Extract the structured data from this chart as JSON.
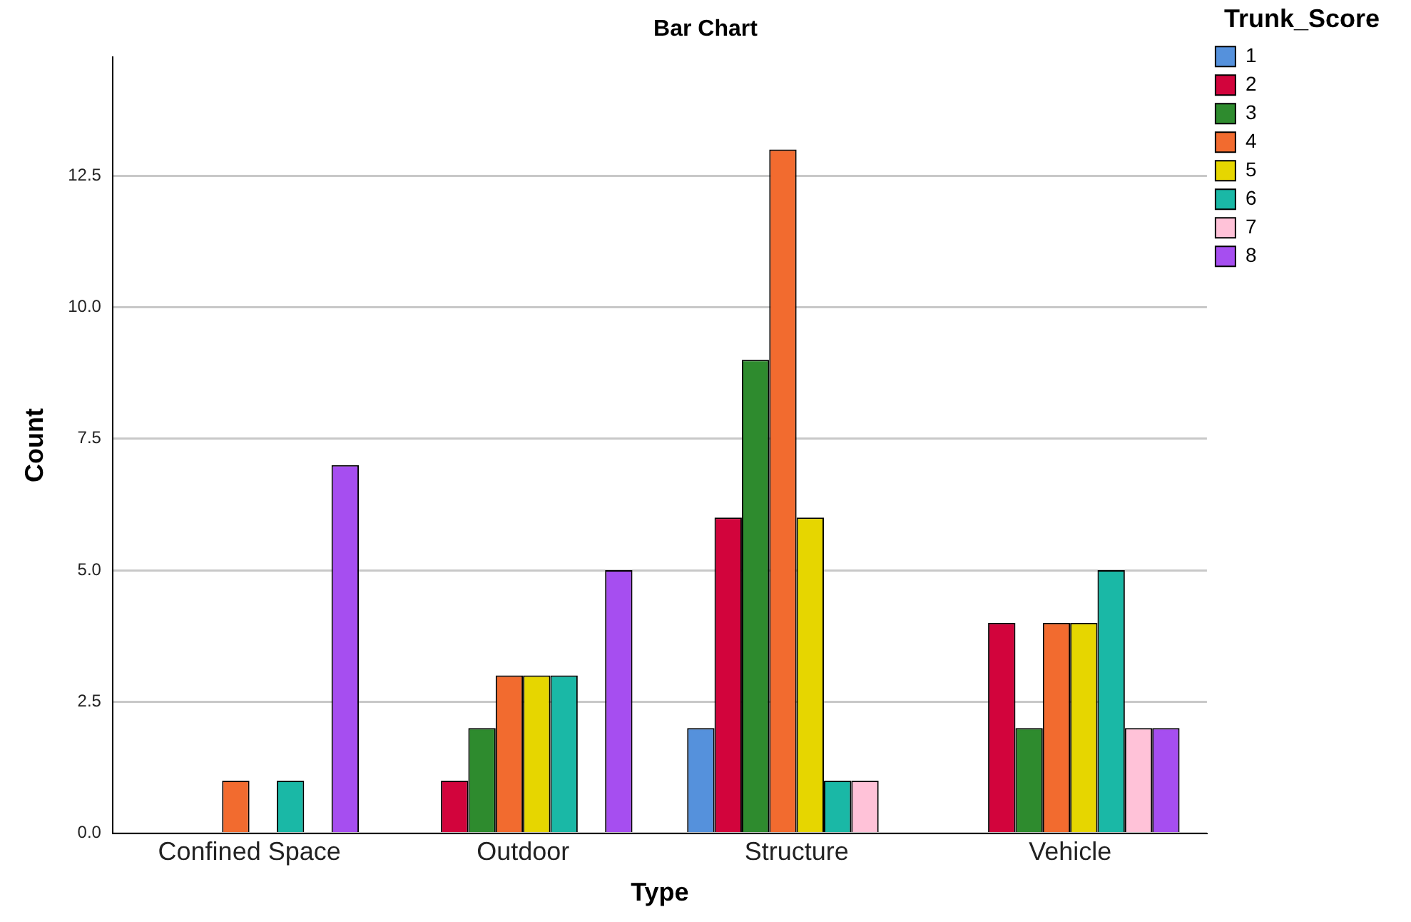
{
  "chart_data": {
    "type": "bar",
    "title": "Bar Chart",
    "xlabel": "Type",
    "ylabel": "Count",
    "legend_title": "Trunk_Score",
    "categories": [
      "Confined Space",
      "Outdoor",
      "Structure",
      "Vehicle"
    ],
    "series": [
      {
        "name": "1",
        "color": "#5591dc",
        "values": [
          null,
          null,
          2,
          null
        ]
      },
      {
        "name": "2",
        "color": "#d2043c",
        "values": [
          null,
          1,
          6,
          4
        ]
      },
      {
        "name": "3",
        "color": "#2e8b2e",
        "values": [
          null,
          2,
          9,
          2
        ]
      },
      {
        "name": "4",
        "color": "#f26b2f",
        "values": [
          1,
          3,
          13,
          4
        ]
      },
      {
        "name": "5",
        "color": "#e6d600",
        "values": [
          null,
          3,
          6,
          4
        ]
      },
      {
        "name": "6",
        "color": "#1ab8a6",
        "values": [
          1,
          3,
          1,
          5
        ]
      },
      {
        "name": "7",
        "color": "#ffc2d8",
        "values": [
          null,
          null,
          1,
          2
        ]
      },
      {
        "name": "8",
        "color": "#a64ef0",
        "values": [
          7,
          5,
          null,
          2
        ]
      }
    ],
    "ylim": [
      0,
      14.75
    ],
    "yticks": [
      {
        "value": 0,
        "label": "0.0"
      },
      {
        "value": 2.5,
        "label": "2.5"
      },
      {
        "value": 5,
        "label": "5.0"
      },
      {
        "value": 7.5,
        "label": "7.5"
      },
      {
        "value": 10,
        "label": "10.0"
      },
      {
        "value": 12.5,
        "label": "12.5"
      }
    ],
    "grid": "y",
    "legend": "top right"
  }
}
